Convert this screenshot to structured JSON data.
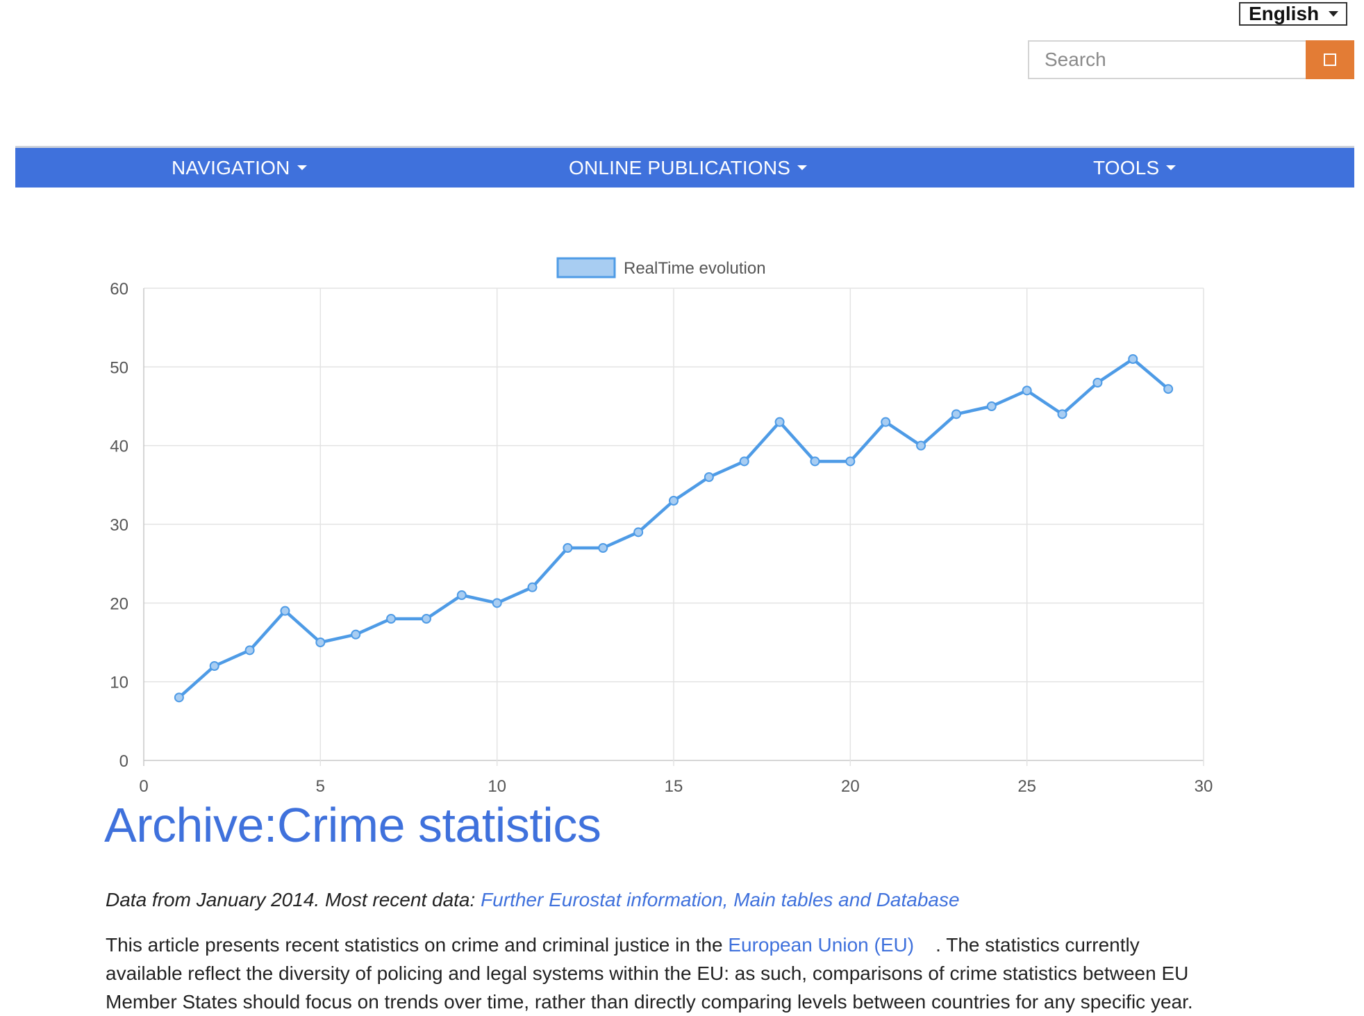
{
  "language": {
    "selected": "English"
  },
  "search": {
    "placeholder": "Search"
  },
  "nav": {
    "items": [
      {
        "label": "NAVIGATION"
      },
      {
        "label": "ONLINE PUBLICATIONS"
      },
      {
        "label": "TOOLS"
      }
    ]
  },
  "colors": {
    "nav_bg": "#3f71dc",
    "search_button": "#e37c35",
    "series_line": "#4e9be6",
    "link": "#3f71dc"
  },
  "chart_data": {
    "type": "line",
    "title": "",
    "xlabel": "",
    "ylabel": "",
    "xlim": [
      0,
      30
    ],
    "ylim": [
      0,
      60
    ],
    "xticks": [
      0,
      5,
      10,
      15,
      20,
      25,
      30
    ],
    "yticks": [
      0,
      10,
      20,
      30,
      40,
      50,
      60
    ],
    "grid": true,
    "legend_position": "top",
    "series": [
      {
        "name": "RealTime evolution",
        "x": [
          1,
          2,
          3,
          4,
          5,
          6,
          7,
          8,
          9,
          10,
          11,
          12,
          13,
          14,
          15,
          16,
          17,
          18,
          19,
          20,
          21,
          22,
          23,
          24,
          25,
          26,
          27,
          28,
          29
        ],
        "y": [
          8,
          12,
          14,
          19,
          15,
          16,
          18,
          18,
          21,
          20,
          22,
          27,
          27,
          29,
          33,
          36,
          38,
          43,
          38,
          38,
          43,
          40,
          44,
          45,
          47,
          44,
          48,
          51,
          47.2
        ]
      }
    ]
  },
  "page": {
    "title": "Archive:Crime statistics",
    "meta_prefix": "Data from January 2014. Most recent data: ",
    "meta_link": "Further Eurostat information, Main tables and Database",
    "para_1": "This article presents recent statistics on crime and criminal justice in the ",
    "para_link": "European Union (EU)",
    "para_2": "    . The statistics currently available reflect the diversity of policing and legal systems within the EU: as such, comparisons of crime statistics between EU Member States should focus on trends over time, rather than directly comparing levels between countries for any specific year."
  }
}
